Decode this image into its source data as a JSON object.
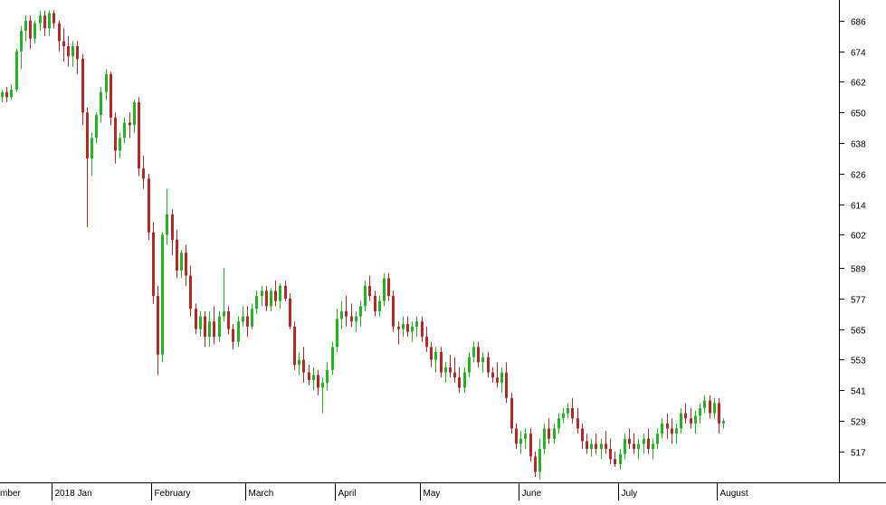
{
  "chart_data": {
    "type": "candlestick",
    "colors": {
      "up": "#22b422",
      "down": "#b42828",
      "axis": "#000000",
      "background": "#ffffff"
    },
    "ylim": [
      507,
      692
    ],
    "y_ticks": [
      686,
      674,
      662,
      650,
      638,
      626,
      614,
      602,
      589,
      577,
      565,
      553,
      541,
      529,
      517
    ],
    "x_labels": [
      "mber",
      "2018 Jan",
      "February",
      "March",
      "April",
      "May",
      "June",
      "July",
      "August"
    ],
    "x_label_index": [
      0,
      11,
      32,
      52,
      71,
      89,
      110,
      131,
      152
    ],
    "grid": false,
    "legend": "none",
    "candles": [
      [
        656,
        659,
        654,
        658
      ],
      [
        658,
        660,
        654,
        656
      ],
      [
        656,
        661,
        655,
        659
      ],
      [
        659,
        675,
        658,
        674
      ],
      [
        674,
        684,
        667,
        682
      ],
      [
        682,
        688,
        678,
        686
      ],
      [
        686,
        688,
        675,
        679
      ],
      [
        679,
        686,
        677,
        685
      ],
      [
        685,
        690,
        682,
        688
      ],
      [
        688,
        690,
        680,
        683
      ],
      [
        683,
        690,
        680,
        689
      ],
      [
        689,
        690,
        683,
        685
      ],
      [
        685,
        686,
        674,
        678
      ],
      [
        678,
        683,
        670,
        676
      ],
      [
        676,
        680,
        668,
        672
      ],
      [
        672,
        678,
        668,
        676
      ],
      [
        676,
        678,
        665,
        671
      ],
      [
        671,
        673,
        645,
        650
      ],
      [
        650,
        652,
        605,
        632
      ],
      [
        632,
        642,
        625,
        640
      ],
      [
        640,
        650,
        638,
        649
      ],
      [
        649,
        660,
        646,
        658
      ],
      [
        658,
        667,
        655,
        665
      ],
      [
        665,
        666,
        645,
        648
      ],
      [
        648,
        650,
        630,
        635
      ],
      [
        635,
        642,
        632,
        640
      ],
      [
        640,
        648,
        638,
        646
      ],
      [
        646,
        650,
        640,
        645
      ],
      [
        645,
        655,
        642,
        654
      ],
      [
        654,
        656,
        625,
        628
      ],
      [
        628,
        633,
        620,
        624
      ],
      [
        624,
        626,
        600,
        603
      ],
      [
        603,
        607,
        575,
        578
      ],
      [
        578,
        582,
        547,
        555
      ],
      [
        555,
        603,
        552,
        602
      ],
      [
        602,
        620,
        598,
        610
      ],
      [
        610,
        612,
        594,
        600
      ],
      [
        600,
        604,
        585,
        588
      ],
      [
        588,
        596,
        585,
        595
      ],
      [
        595,
        598,
        582,
        586
      ],
      [
        586,
        590,
        570,
        573
      ],
      [
        573,
        575,
        563,
        565
      ],
      [
        565,
        572,
        562,
        570
      ],
      [
        570,
        572,
        558,
        562
      ],
      [
        562,
        572,
        558,
        568
      ],
      [
        568,
        574,
        559,
        562
      ],
      [
        562,
        572,
        560,
        570
      ],
      [
        570,
        589,
        568,
        572
      ],
      [
        572,
        574,
        563,
        565
      ],
      [
        565,
        567,
        557,
        560
      ],
      [
        560,
        570,
        558,
        568
      ],
      [
        568,
        574,
        566,
        570
      ],
      [
        570,
        574,
        562,
        566
      ],
      [
        566,
        575,
        565,
        573
      ],
      [
        573,
        580,
        571,
        578
      ],
      [
        578,
        582,
        574,
        580
      ],
      [
        580,
        582,
        572,
        574
      ],
      [
        574,
        581,
        572,
        580
      ],
      [
        580,
        584,
        574,
        576
      ],
      [
        576,
        583,
        573,
        582
      ],
      [
        582,
        584,
        576,
        577
      ],
      [
        577,
        579,
        565,
        566
      ],
      [
        566,
        568,
        549,
        551
      ],
      [
        551,
        556,
        547,
        553
      ],
      [
        553,
        558,
        544,
        548
      ],
      [
        548,
        551,
        543,
        545
      ],
      [
        545,
        550,
        541,
        547
      ],
      [
        547,
        549,
        539,
        542
      ],
      [
        542,
        546,
        532,
        544
      ],
      [
        544,
        552,
        541,
        549
      ],
      [
        549,
        560,
        547,
        558
      ],
      [
        558,
        573,
        556,
        569
      ],
      [
        569,
        576,
        565,
        572
      ],
      [
        572,
        578,
        566,
        570
      ],
      [
        570,
        575,
        566,
        568
      ],
      [
        568,
        572,
        564,
        570
      ],
      [
        570,
        576,
        566,
        574
      ],
      [
        574,
        584,
        572,
        582
      ],
      [
        582,
        586,
        576,
        578
      ],
      [
        578,
        580,
        570,
        572
      ],
      [
        572,
        578,
        570,
        576
      ],
      [
        576,
        587,
        574,
        585
      ],
      [
        585,
        587,
        576,
        578
      ],
      [
        578,
        580,
        564,
        566
      ],
      [
        566,
        568,
        559,
        565
      ],
      [
        565,
        570,
        562,
        567
      ],
      [
        567,
        570,
        562,
        564
      ],
      [
        564,
        568,
        560,
        566
      ],
      [
        566,
        570,
        562,
        568
      ],
      [
        568,
        570,
        560,
        562
      ],
      [
        562,
        566,
        556,
        558
      ],
      [
        558,
        560,
        550,
        553
      ],
      [
        553,
        558,
        548,
        556
      ],
      [
        556,
        558,
        546,
        548
      ],
      [
        548,
        552,
        544,
        550
      ],
      [
        550,
        555,
        546,
        548
      ],
      [
        548,
        554,
        544,
        546
      ],
      [
        546,
        550,
        540,
        542
      ],
      [
        542,
        550,
        540,
        548
      ],
      [
        548,
        556,
        546,
        554
      ],
      [
        554,
        560,
        552,
        558
      ],
      [
        558,
        560,
        550,
        552
      ],
      [
        552,
        556,
        548,
        554
      ],
      [
        554,
        556,
        546,
        548
      ],
      [
        548,
        550,
        544,
        546
      ],
      [
        546,
        552,
        542,
        544
      ],
      [
        544,
        550,
        540,
        548
      ],
      [
        548,
        552,
        536,
        538
      ],
      [
        538,
        540,
        524,
        526
      ],
      [
        526,
        528,
        518,
        520
      ],
      [
        520,
        525,
        516,
        522
      ],
      [
        522,
        526,
        518,
        524
      ],
      [
        524,
        526,
        513,
        515
      ],
      [
        515,
        517,
        507,
        509
      ],
      [
        509,
        522,
        506,
        518
      ],
      [
        518,
        528,
        516,
        526
      ],
      [
        526,
        530,
        520,
        522
      ],
      [
        522,
        528,
        520,
        526
      ],
      [
        526,
        532,
        524,
        530
      ],
      [
        530,
        534,
        528,
        532
      ],
      [
        532,
        536,
        530,
        534
      ],
      [
        534,
        538,
        528,
        530
      ],
      [
        530,
        534,
        524,
        526
      ],
      [
        526,
        528,
        518,
        521
      ],
      [
        521,
        524,
        516,
        518
      ],
      [
        518,
        522,
        515,
        520
      ],
      [
        520,
        524,
        516,
        518
      ],
      [
        518,
        522,
        514,
        520
      ],
      [
        520,
        525,
        516,
        518
      ],
      [
        518,
        522,
        512,
        514
      ],
      [
        514,
        517,
        511,
        512
      ],
      [
        512,
        518,
        510,
        516
      ],
      [
        516,
        524,
        514,
        522
      ],
      [
        522,
        526,
        518,
        520
      ],
      [
        520,
        524,
        516,
        518
      ],
      [
        518,
        522,
        514,
        520
      ],
      [
        520,
        524,
        516,
        522
      ],
      [
        522,
        526,
        516,
        518
      ],
      [
        518,
        522,
        514,
        520
      ],
      [
        520,
        526,
        518,
        524
      ],
      [
        524,
        530,
        522,
        528
      ],
      [
        528,
        532,
        522,
        526
      ],
      [
        526,
        530,
        520,
        524
      ],
      [
        524,
        528,
        520,
        526
      ],
      [
        526,
        534,
        524,
        532
      ],
      [
        532,
        536,
        528,
        530
      ],
      [
        530,
        534,
        526,
        528
      ],
      [
        528,
        533,
        524,
        531
      ],
      [
        531,
        536,
        528,
        534
      ],
      [
        534,
        539,
        532,
        537
      ],
      [
        537,
        539,
        530,
        532
      ],
      [
        532,
        538,
        530,
        536
      ],
      [
        536,
        538,
        524,
        528
      ],
      [
        528,
        530,
        526,
        529
      ]
    ]
  }
}
